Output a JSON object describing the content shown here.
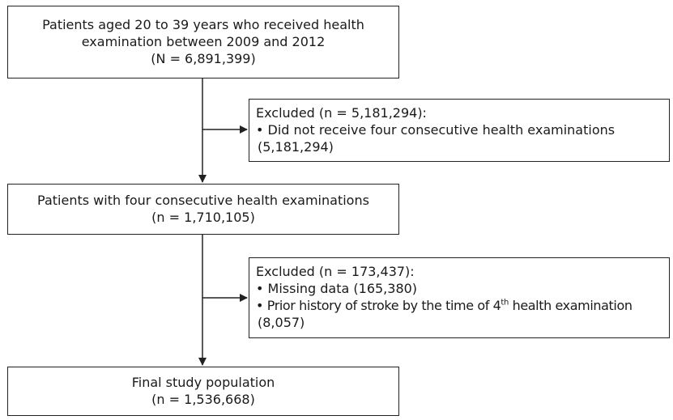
{
  "box1": {
    "line1": "Patients aged 20 to 39 years who received health",
    "line2": "examination between 2009 and 2012",
    "line3": "(N = 6,891,399)"
  },
  "excluded1": {
    "title": "Excluded (n = 5,181,294):",
    "item1_line1": "• Did not receive four consecutive health examinations",
    "item1_line2": "(5,181,294)"
  },
  "box2": {
    "line1": "Patients with four consecutive health examinations",
    "line2": "(n = 1,710,105)"
  },
  "excluded2": {
    "title": "Excluded (n = 173,437):",
    "item1": "• Missing data (165,380)",
    "item2_pre": "• Prior history of stroke by the time of 4",
    "item2_sup": "th",
    "item2_post": " health examination",
    "item2_line2": "(8,057)"
  },
  "box3": {
    "line1": "Final study population",
    "line2": "(n = 1,536,668)"
  }
}
